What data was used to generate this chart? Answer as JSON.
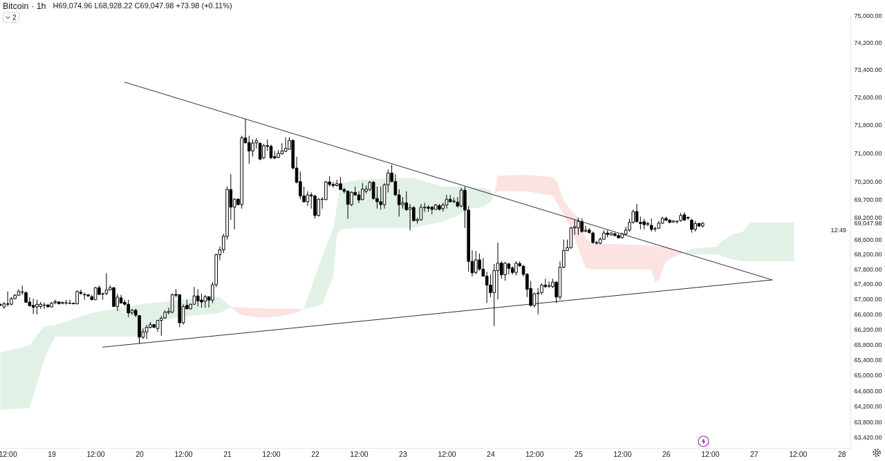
{
  "chart_data": {
    "type": "candlestick",
    "title": "Bitcoin · 1h",
    "subtitle": "H69,074.96 L68,928.22 C69,047.98 +73.98 (+0.11%)",
    "annotations": [
      "2",
      "12:49"
    ],
    "color": "#000000",
    "log": true,
    "xlim": [
      "--05-18T09:54",
      "--05-28T02:24"
    ],
    "xticks": [
      {
        "value": "--05-18T12:00",
        "label": "12:00"
      },
      {
        "value": "--05-19",
        "label": "19"
      },
      {
        "value": "--05-19T12:00",
        "label": "12:00"
      },
      {
        "value": "--05-20",
        "label": "20"
      },
      {
        "value": "--05-20T12:00",
        "label": "12:00"
      },
      {
        "value": "--05-21",
        "label": "21"
      },
      {
        "value": "--05-21T12:00",
        "label": "12:00"
      },
      {
        "value": "--05-22",
        "label": "22"
      },
      {
        "value": "--05-22T12:00",
        "label": "12:00"
      },
      {
        "value": "--05-23",
        "label": "23"
      },
      {
        "value": "--05-23T12:00",
        "label": "12:00"
      },
      {
        "value": "--05-24",
        "label": "24"
      },
      {
        "value": "--05-24T12:00",
        "label": "12:00"
      },
      {
        "value": "--05-25",
        "label": "25"
      },
      {
        "value": "--05-25T12:00",
        "label": "12:00"
      },
      {
        "value": "--05-26",
        "label": "26"
      },
      {
        "value": "--05-26T12:00",
        "label": "12:00"
      },
      {
        "value": "--05-27",
        "label": "27"
      },
      {
        "value": "--05-27T12:00",
        "label": "12:00"
      },
      {
        "value": "--05-28",
        "label": "28"
      }
    ],
    "ylim": [
      63150,
      75000
    ],
    "yticks": [
      {
        "value": 75000,
        "label": "75,000.00"
      },
      {
        "value": 74200,
        "label": "74,200.00"
      },
      {
        "value": 73400,
        "label": "73,400.00"
      },
      {
        "value": 72600,
        "label": "72,600.00"
      },
      {
        "value": 71800,
        "label": "71,800.00"
      },
      {
        "value": 71000,
        "label": "71,000.00"
      },
      {
        "value": 70200,
        "label": "70,200.00"
      },
      {
        "value": 69700,
        "label": "69,700.00"
      },
      {
        "value": 69200,
        "label": "69,200.00"
      },
      {
        "value": 69047.98,
        "label": "69,047.98"
      },
      {
        "value": 68600,
        "label": "68,600.00"
      },
      {
        "value": 68200,
        "label": "68,200.00"
      },
      {
        "value": 67800,
        "label": "67,800.00"
      },
      {
        "value": 67400,
        "label": "67,400.00"
      },
      {
        "value": 67000,
        "label": "67,000.00"
      },
      {
        "value": 66600,
        "label": "66,600.00"
      },
      {
        "value": 66200,
        "label": "66,200.00"
      },
      {
        "value": 65800,
        "label": "65,800.00"
      },
      {
        "value": 65400,
        "label": "65,400.00"
      },
      {
        "value": 65000,
        "label": "65,000.00"
      },
      {
        "value": 64600,
        "label": "64,600.00"
      },
      {
        "value": 64200,
        "label": "64,200.00"
      },
      {
        "value": 63800,
        "label": "63,800.00"
      },
      {
        "value": 63420,
        "label": "63,420.00"
      }
    ],
    "x": [
      "--05-18T10:00",
      "--05-18T11:00",
      "--05-18T12:00",
      "--05-18T13:00",
      "--05-18T14:00",
      "--05-18T15:00",
      "--05-18T16:00",
      "--05-18T17:00",
      "--05-18T18:00",
      "--05-18T19:00",
      "--05-18T20:00",
      "--05-18T21:00",
      "--05-18T22:00",
      "--05-18T23:00",
      "--05-19T00:00",
      "--05-19T01:00",
      "--05-19T02:00",
      "--05-19T03:00",
      "--05-19T04:00",
      "--05-19T05:00",
      "--05-19T06:00",
      "--05-19T07:00",
      "--05-19T08:00",
      "--05-19T09:00",
      "--05-19T10:00",
      "--05-19T11:00",
      "--05-19T12:00",
      "--05-19T13:00",
      "--05-19T14:00",
      "--05-19T15:00",
      "--05-19T16:00",
      "--05-19T17:00",
      "--05-19T18:00",
      "--05-19T19:00",
      "--05-19T20:00",
      "--05-19T21:00",
      "--05-19T22:00",
      "--05-19T23:00",
      "--05-20T00:00",
      "--05-20T01:00",
      "--05-20T02:00",
      "--05-20T03:00",
      "--05-20T04:00",
      "--05-20T05:00",
      "--05-20T06:00",
      "--05-20T07:00",
      "--05-20T08:00",
      "--05-20T09:00",
      "--05-20T10:00",
      "--05-20T11:00",
      "--05-20T12:00",
      "--05-20T13:00",
      "--05-20T14:00",
      "--05-20T15:00",
      "--05-20T16:00",
      "--05-20T17:00",
      "--05-20T18:00",
      "--05-20T19:00",
      "--05-20T20:00",
      "--05-20T21:00",
      "--05-20T22:00",
      "--05-20T23:00",
      "--05-21T00:00",
      "--05-21T01:00",
      "--05-21T02:00",
      "--05-21T03:00",
      "--05-21T04:00",
      "--05-21T05:00",
      "--05-21T06:00",
      "--05-21T07:00",
      "--05-21T08:00",
      "--05-21T09:00",
      "--05-21T10:00",
      "--05-21T11:00",
      "--05-21T12:00",
      "--05-21T13:00",
      "--05-21T14:00",
      "--05-21T15:00",
      "--05-21T16:00",
      "--05-21T17:00",
      "--05-21T18:00",
      "--05-21T19:00",
      "--05-21T20:00",
      "--05-21T21:00",
      "--05-21T22:00",
      "--05-21T23:00",
      "--05-22T00:00",
      "--05-22T01:00",
      "--05-22T02:00",
      "--05-22T03:00",
      "--05-22T04:00",
      "--05-22T05:00",
      "--05-22T06:00",
      "--05-22T07:00",
      "--05-22T08:00",
      "--05-22T09:00",
      "--05-22T10:00",
      "--05-22T11:00",
      "--05-22T12:00",
      "--05-22T13:00",
      "--05-22T14:00",
      "--05-22T15:00",
      "--05-22T16:00",
      "--05-22T17:00",
      "--05-22T18:00",
      "--05-22T19:00",
      "--05-22T20:00",
      "--05-22T21:00",
      "--05-22T22:00",
      "--05-22T23:00",
      "--05-23T00:00",
      "--05-23T01:00",
      "--05-23T02:00",
      "--05-23T03:00",
      "--05-23T04:00",
      "--05-23T05:00",
      "--05-23T06:00",
      "--05-23T07:00",
      "--05-23T08:00",
      "--05-23T09:00",
      "--05-23T10:00",
      "--05-23T11:00",
      "--05-23T12:00",
      "--05-23T13:00",
      "--05-23T14:00",
      "--05-23T15:00",
      "--05-23T16:00",
      "--05-23T17:00",
      "--05-23T18:00",
      "--05-23T19:00",
      "--05-23T20:00",
      "--05-23T21:00",
      "--05-23T22:00",
      "--05-23T23:00",
      "--05-24T00:00",
      "--05-24T01:00",
      "--05-24T02:00",
      "--05-24T03:00",
      "--05-24T04:00",
      "--05-24T05:00",
      "--05-24T06:00",
      "--05-24T07:00",
      "--05-24T08:00",
      "--05-24T09:00",
      "--05-24T10:00",
      "--05-24T11:00",
      "--05-24T12:00",
      "--05-24T13:00",
      "--05-24T14:00",
      "--05-24T15:00",
      "--05-24T16:00",
      "--05-24T17:00",
      "--05-24T18:00",
      "--05-24T19:00",
      "--05-24T20:00",
      "--05-24T21:00",
      "--05-24T22:00",
      "--05-24T23:00",
      "--05-25T00:00",
      "--05-25T01:00",
      "--05-25T02:00",
      "--05-25T03:00",
      "--05-25T04:00",
      "--05-25T05:00",
      "--05-25T06:00",
      "--05-25T07:00",
      "--05-25T08:00",
      "--05-25T09:00",
      "--05-25T10:00",
      "--05-25T11:00",
      "--05-25T12:00",
      "--05-25T13:00",
      "--05-25T14:00",
      "--05-25T15:00",
      "--05-25T16:00",
      "--05-25T17:00",
      "--05-25T18:00",
      "--05-25T19:00",
      "--05-25T20:00",
      "--05-25T21:00",
      "--05-25T22:00",
      "--05-25T23:00",
      "--05-26T00:00",
      "--05-26T01:00",
      "--05-26T02:00",
      "--05-26T03:00",
      "--05-26T04:00",
      "--05-26T05:00",
      "--05-26T06:00",
      "--05-26T07:00",
      "--05-26T08:00",
      "--05-26T09:00",
      "--05-26T10:00"
    ],
    "ohlc": [
      [
        66850,
        66880,
        66810,
        66840
      ],
      [
        66790,
        66920,
        66740,
        66870
      ],
      [
        66870,
        67200,
        66800,
        66860
      ],
      [
        66860,
        67050,
        66830,
        67010
      ],
      [
        67010,
        67130,
        66990,
        67100
      ],
      [
        67100,
        67260,
        67090,
        67200
      ],
      [
        67190,
        67360,
        67110,
        67180
      ],
      [
        67170,
        67200,
        66900,
        66910
      ],
      [
        66920,
        67050,
        66800,
        66820
      ],
      [
        66830,
        67010,
        66600,
        66780
      ],
      [
        66790,
        66980,
        66590,
        66860
      ],
      [
        66800,
        66920,
        66740,
        66860
      ],
      [
        66830,
        66910,
        66740,
        66840
      ],
      [
        66840,
        66870,
        66780,
        66790
      ],
      [
        66790,
        66920,
        66780,
        66890
      ],
      [
        66900,
        66980,
        66860,
        66930
      ],
      [
        66920,
        66940,
        66860,
        66870
      ],
      [
        66880,
        66930,
        66860,
        66910
      ],
      [
        66890,
        66980,
        66850,
        66900
      ],
      [
        66880,
        66980,
        66870,
        66890
      ],
      [
        66890,
        66900,
        66860,
        66870
      ],
      [
        66870,
        67230,
        66860,
        67200
      ],
      [
        67180,
        67250,
        67110,
        67150
      ],
      [
        67110,
        67170,
        66980,
        67120
      ],
      [
        67110,
        67130,
        67060,
        67080
      ],
      [
        67060,
        67110,
        66970,
        66980
      ],
      [
        66980,
        67320,
        66970,
        67300
      ],
      [
        67300,
        67360,
        67110,
        67120
      ],
      [
        67130,
        67170,
        66980,
        67140
      ],
      [
        67150,
        67690,
        67100,
        67240
      ],
      [
        67240,
        67370,
        67230,
        67300
      ],
      [
        67300,
        67320,
        66790,
        66800
      ],
      [
        66800,
        67140,
        66680,
        67050
      ],
      [
        67030,
        67110,
        66880,
        66890
      ],
      [
        66910,
        66980,
        66820,
        66860
      ],
      [
        66860,
        66980,
        66520,
        66630
      ],
      [
        66630,
        66740,
        66580,
        66700
      ],
      [
        66700,
        66740,
        66520,
        66570
      ],
      [
        66560,
        66570,
        65820,
        65990
      ],
      [
        65990,
        66220,
        65940,
        66130
      ],
      [
        66130,
        66310,
        65940,
        66250
      ],
      [
        66250,
        66390,
        66220,
        66320
      ],
      [
        66320,
        66340,
        66230,
        66250
      ],
      [
        66220,
        66450,
        66130,
        66430
      ],
      [
        66430,
        66550,
        66030,
        66490
      ],
      [
        66500,
        66700,
        66470,
        66650
      ],
      [
        66640,
        66770,
        66590,
        66670
      ],
      [
        66650,
        67150,
        66620,
        67110
      ],
      [
        67120,
        67260,
        67050,
        67100
      ],
      [
        67110,
        67130,
        66250,
        66370
      ],
      [
        66370,
        66860,
        66320,
        66800
      ],
      [
        66830,
        66980,
        66720,
        66740
      ],
      [
        66740,
        66880,
        66720,
        66860
      ],
      [
        66860,
        67320,
        66850,
        67080
      ],
      [
        67080,
        67260,
        66800,
        66950
      ],
      [
        66970,
        67140,
        66770,
        66920
      ],
      [
        66940,
        67110,
        66770,
        67060
      ],
      [
        67060,
        67070,
        66770,
        66970
      ],
      [
        66970,
        67450,
        66890,
        67380
      ],
      [
        67380,
        68220,
        67320,
        68190
      ],
      [
        68190,
        68410,
        68040,
        68320
      ],
      [
        68320,
        68760,
        68230,
        68690
      ],
      [
        68690,
        70060,
        68600,
        69980
      ],
      [
        69980,
        70410,
        69140,
        69490
      ],
      [
        69490,
        69740,
        68880,
        69710
      ],
      [
        69710,
        69740,
        69540,
        69560
      ],
      [
        69560,
        71490,
        69450,
        71430
      ],
      [
        71430,
        71970,
        71270,
        71290
      ],
      [
        71300,
        71490,
        70700,
        71060
      ],
      [
        71060,
        71390,
        70900,
        71280
      ],
      [
        71290,
        71420,
        71130,
        71350
      ],
      [
        71280,
        71300,
        70800,
        70830
      ],
      [
        70870,
        71260,
        70830,
        71210
      ],
      [
        71210,
        71390,
        71060,
        71190
      ],
      [
        71190,
        71240,
        70830,
        70870
      ],
      [
        70900,
        71060,
        70830,
        70860
      ],
      [
        70880,
        71090,
        70860,
        70990
      ],
      [
        70980,
        71280,
        70960,
        71060
      ],
      [
        71050,
        71450,
        71030,
        71130
      ],
      [
        71110,
        71450,
        71100,
        71360
      ],
      [
        71360,
        71390,
        70540,
        70580
      ],
      [
        70580,
        70900,
        70150,
        70180
      ],
      [
        70200,
        70480,
        69710,
        69800
      ],
      [
        69800,
        70060,
        69610,
        69640
      ],
      [
        69640,
        69930,
        69520,
        69830
      ],
      [
        69830,
        69900,
        69450,
        69800
      ],
      [
        69800,
        69830,
        69170,
        69260
      ],
      [
        69260,
        69740,
        69230,
        69710
      ],
      [
        69710,
        69770,
        69450,
        69700
      ],
      [
        69700,
        70220,
        69680,
        70190
      ],
      [
        70190,
        70350,
        70060,
        70120
      ],
      [
        70120,
        70190,
        70030,
        70090
      ],
      [
        70090,
        70250,
        70060,
        70140
      ],
      [
        70140,
        70330,
        69960,
        69980
      ],
      [
        69980,
        70030,
        69870,
        69930
      ],
      [
        69930,
        69960,
        69170,
        69570
      ],
      [
        69560,
        69930,
        69520,
        69900
      ],
      [
        69900,
        70060,
        69800,
        69830
      ],
      [
        69830,
        69930,
        69600,
        69690
      ],
      [
        69700,
        70160,
        69680,
        69990
      ],
      [
        69930,
        70090,
        69870,
        69990
      ],
      [
        69980,
        70220,
        69930,
        70180
      ],
      [
        70180,
        70220,
        69700,
        69730
      ],
      [
        69730,
        70060,
        69450,
        69640
      ],
      [
        69640,
        70060,
        69420,
        69560
      ],
      [
        69560,
        70160,
        69450,
        70110
      ],
      [
        70110,
        70540,
        69900,
        70440
      ],
      [
        70440,
        70670,
        70190,
        70200
      ],
      [
        70200,
        70410,
        69800,
        69830
      ],
      [
        69830,
        69990,
        69230,
        69560
      ],
      [
        69560,
        69770,
        69450,
        69610
      ],
      [
        69610,
        69930,
        69390,
        69420
      ],
      [
        69430,
        69580,
        68850,
        69480
      ],
      [
        69480,
        69520,
        69100,
        69120
      ],
      [
        69120,
        69200,
        69040,
        69150
      ],
      [
        69140,
        69580,
        69120,
        69490
      ],
      [
        69470,
        69610,
        69360,
        69490
      ],
      [
        69490,
        69550,
        69360,
        69460
      ],
      [
        69490,
        69520,
        69290,
        69430
      ],
      [
        69430,
        69580,
        69420,
        69550
      ],
      [
        69530,
        69580,
        69400,
        69430
      ],
      [
        69450,
        69610,
        69370,
        69550
      ],
      [
        69550,
        69830,
        69450,
        69710
      ],
      [
        69710,
        69830,
        69620,
        69640
      ],
      [
        69640,
        69760,
        69600,
        69660
      ],
      [
        69630,
        69770,
        69480,
        69520
      ],
      [
        69520,
        70030,
        69480,
        69960
      ],
      [
        69960,
        70060,
        68920,
        69410
      ],
      [
        69410,
        69520,
        67730,
        68010
      ],
      [
        68010,
        68310,
        67600,
        67700
      ],
      [
        67710,
        68290,
        67660,
        68050
      ],
      [
        68050,
        68220,
        67760,
        67800
      ],
      [
        67800,
        68100,
        67600,
        67610
      ],
      [
        67610,
        67730,
        66890,
        67370
      ],
      [
        67370,
        67660,
        67050,
        67170
      ],
      [
        67170,
        67940,
        66280,
        67760
      ],
      [
        67760,
        68520,
        66990,
        67960
      ],
      [
        67960,
        68010,
        67540,
        67650
      ],
      [
        67650,
        67990,
        67490,
        67960
      ],
      [
        67940,
        67970,
        67660,
        67820
      ],
      [
        67830,
        67880,
        67650,
        67710
      ],
      [
        67710,
        68010,
        67630,
        67960
      ],
      [
        67950,
        68010,
        67860,
        67890
      ],
      [
        67880,
        67910,
        67600,
        67660
      ],
      [
        67660,
        67690,
        67050,
        67260
      ],
      [
        67280,
        67480,
        66800,
        66830
      ],
      [
        66830,
        67170,
        66770,
        67140
      ],
      [
        67140,
        67290,
        66590,
        67160
      ],
      [
        67170,
        67420,
        67110,
        67370
      ],
      [
        67370,
        67540,
        67290,
        67330
      ],
      [
        67340,
        67470,
        67290,
        67360
      ],
      [
        67330,
        67540,
        67290,
        67450
      ],
      [
        67450,
        67480,
        66890,
        67050
      ],
      [
        67050,
        68010,
        66980,
        67850
      ],
      [
        67850,
        68600,
        67820,
        68300
      ],
      [
        68300,
        68600,
        68290,
        68380
      ],
      [
        68380,
        68950,
        68350,
        68920
      ],
      [
        68920,
        69140,
        68730,
        68950
      ],
      [
        68920,
        69200,
        68730,
        69100
      ],
      [
        69090,
        69180,
        68790,
        68820
      ],
      [
        68830,
        68980,
        68790,
        68860
      ],
      [
        68860,
        68920,
        68760,
        68790
      ],
      [
        68780,
        68820,
        68490,
        68520
      ],
      [
        68520,
        68560,
        68470,
        68500
      ],
      [
        68500,
        68660,
        68470,
        68610
      ],
      [
        68610,
        68850,
        68600,
        68780
      ],
      [
        68780,
        68860,
        68660,
        68740
      ],
      [
        68730,
        68800,
        68700,
        68780
      ],
      [
        68760,
        68790,
        68690,
        68710
      ],
      [
        68710,
        68760,
        68630,
        68650
      ],
      [
        68650,
        68790,
        68630,
        68760
      ],
      [
        68750,
        68950,
        68720,
        68860
      ],
      [
        68860,
        69170,
        68820,
        69070
      ],
      [
        69070,
        69420,
        69040,
        69370
      ],
      [
        69370,
        69580,
        69070,
        69090
      ],
      [
        69070,
        69230,
        68880,
        69040
      ],
      [
        69090,
        69170,
        68880,
        69010
      ],
      [
        69010,
        69090,
        68970,
        69040
      ],
      [
        68990,
        69180,
        68820,
        68880
      ],
      [
        68890,
        68950,
        68820,
        68900
      ],
      [
        68910,
        69110,
        68900,
        69050
      ],
      [
        69050,
        69230,
        69030,
        69180
      ],
      [
        69180,
        69230,
        69110,
        69130
      ],
      [
        69130,
        69160,
        69050,
        69070
      ],
      [
        69080,
        69130,
        69060,
        69110
      ],
      [
        69100,
        69130,
        69040,
        69090
      ],
      [
        69120,
        69330,
        69090,
        69260
      ],
      [
        69280,
        69350,
        69120,
        69130
      ],
      [
        69210,
        69230,
        69140,
        69190
      ],
      [
        69130,
        69170,
        68790,
        68880
      ],
      [
        68880,
        69110,
        68820,
        69040
      ],
      [
        69040,
        69070,
        68950,
        68970
      ],
      [
        68970,
        69074.96,
        68928.22,
        69047.98
      ]
    ],
    "series": [
      {
        "type": "area",
        "color": "#e2f1e5",
        "x": [
          "--05-18T10:00",
          "--05-18T18:00",
          "--05-18T20:00",
          "--05-18T22:00",
          "--05-19T01:00",
          "--05-19T11:00",
          "--05-20T00:00",
          "--05-20T06:00",
          "--05-20T12:00",
          "--05-20T22:00",
          "--05-21T01:00"
        ],
        "values": [
          null,
          null,
          null,
          null,
          null,
          null,
          null,
          null,
          null,
          null,
          null
        ],
        "upper": [
          65590,
          65770,
          66040,
          66280,
          66310,
          66630,
          66860,
          66920,
          66990,
          67050,
          66800
        ],
        "lower": [
          64110,
          64160,
          64780,
          65410,
          66010,
          66010,
          66010,
          66440,
          66530,
          66630,
          66780
        ]
      },
      {
        "type": "area",
        "color": "#fbe3e1",
        "x": [
          "--05-21T01:00",
          "--05-21T04:00",
          "--05-21T10:00",
          "--05-21T15:00",
          "--05-21T19:00",
          "--05-21T21:00"
        ],
        "values": [
          null,
          null,
          null,
          null,
          null,
          null
        ],
        "upper": [
          66800,
          66770,
          66750,
          66750,
          66750,
          66740
        ],
        "lower": [
          66780,
          66570,
          66500,
          66550,
          66640,
          66740
        ]
      },
      {
        "type": "area",
        "color": "#e2f1e5",
        "x": [
          "--05-21T21:00",
          "--05-22T00:00",
          "--05-22T02:00",
          "--05-22T05:00",
          "--05-22T06:00",
          "--05-22T07:00",
          "--05-22T12:00",
          "--05-22T20:00",
          "--05-23T03:00",
          "--05-23T11:00",
          "--05-23T15:00",
          "--05-23T18:00",
          "--05-23T22:00",
          "--05-24T00:00",
          "--05-24T01:00"
        ],
        "values": [
          null,
          null,
          null,
          null,
          null,
          null,
          null,
          null,
          null,
          null,
          null,
          null,
          null,
          null,
          null
        ],
        "upper": [
          66740,
          67600,
          68160,
          68920,
          69490,
          70160,
          70250,
          70290,
          70290,
          70060,
          70060,
          70020,
          70020,
          69960,
          69800
        ],
        "lower": [
          66740,
          66790,
          66860,
          67600,
          68730,
          68880,
          68920,
          68920,
          68920,
          69100,
          69250,
          69450,
          69490,
          69640,
          69800
        ]
      },
      {
        "type": "area",
        "color": "#fbe3e1",
        "x": [
          "--05-24T01:00",
          "--05-24T02:00",
          "--05-24T10:00",
          "--05-24T17:00",
          "--05-24T18:00",
          "--05-24T20:00",
          "--05-24T22:00",
          "--05-25T00:00",
          "--05-25T02:00",
          "--05-25T04:00",
          "--05-25T10:00",
          "--05-25T20:00",
          "--05-25T21:00",
          "--05-25T22:00",
          "--05-26T00:00",
          "--05-26T02:00",
          "--05-26T05:00"
        ],
        "values": [
          null,
          null,
          null,
          null,
          null,
          null,
          null,
          null,
          null,
          null,
          null,
          null,
          null,
          null,
          null,
          null,
          null
        ],
        "upper": [
          69800,
          70370,
          70390,
          70330,
          70220,
          69680,
          69390,
          69200,
          68630,
          68480,
          68480,
          68440,
          68440,
          68420,
          68410,
          68350,
          68250
        ],
        "lower": [
          69800,
          69940,
          69920,
          69810,
          69640,
          69290,
          68920,
          68350,
          67830,
          67790,
          67790,
          67790,
          67450,
          67510,
          68010,
          68120,
          68250
        ]
      },
      {
        "type": "area",
        "color": "#e2f1e5",
        "x": [
          "--05-26T05:00",
          "--05-26T07:00",
          "--05-26T14:00",
          "--05-26T15:00",
          "--05-26T18:00",
          "--05-26T21:00",
          "--05-26T23:00",
          "--05-27T04:00",
          "--05-27T11:00"
        ],
        "values": [
          null,
          null,
          null,
          null,
          null,
          null,
          null,
          null,
          null
        ],
        "upper": [
          68250,
          68350,
          68410,
          68540,
          68730,
          68820,
          69070,
          69070,
          69070
        ],
        "lower": [
          68250,
          68200,
          68200,
          68160,
          68070,
          68010,
          68010,
          68010,
          68010
        ]
      },
      {
        "type": "line",
        "color": "#2a2e39",
        "x": [
          "--05-19T20:00",
          "--05-27T05:00"
        ],
        "values": [
          73030,
          67510
        ]
      },
      {
        "type": "line",
        "color": "#2a2e39",
        "x": [
          "--05-19T14:00",
          "--05-27T05:00"
        ],
        "values": [
          65730,
          67510
        ]
      }
    ]
  }
}
